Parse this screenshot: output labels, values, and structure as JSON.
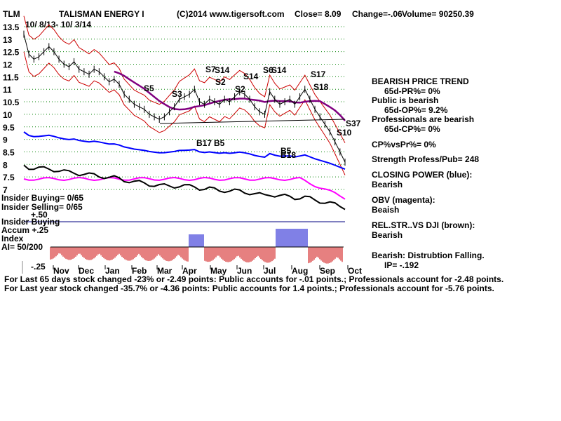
{
  "header": {
    "ticker": "TLM",
    "name": "TALISMAN ENERGY I",
    "copyright": "(C)2014 www.tigersoft.com",
    "close": "Close=   8.09",
    "change": "Change=-.06",
    "volume": "Volume=  90250.39",
    "date_range": "10/ 8/13- 10/ 3/14"
  },
  "chart_data": {
    "type": "line",
    "y_ticks": [
      "13.5",
      "13",
      "12.5",
      "12",
      "11.5",
      "11",
      "10.5",
      "10",
      "9.5",
      "9",
      "8.5",
      "8",
      "7.5",
      "7"
    ],
    "ylim": [
      6.8,
      13.6
    ],
    "x_ticks": [
      "Nov",
      "Dec",
      "Jan",
      "Feb",
      "Mar",
      "Apr",
      "May",
      "Jun",
      "Jul",
      "Aug",
      "Sep",
      "Oct"
    ],
    "grid": true,
    "price": [
      13.2,
      12.4,
      12.2,
      12.3,
      12.5,
      12.7,
      12.5,
      12.2,
      12.0,
      11.9,
      12.1,
      11.8,
      11.7,
      11.6,
      11.8,
      11.7,
      11.5,
      11.3,
      11.4,
      11.2,
      10.8,
      10.6,
      10.4,
      10.3,
      10.2,
      10.0,
      9.9,
      9.8,
      9.9,
      10.1,
      10.3,
      10.6,
      10.7,
      10.8,
      11.0,
      10.5,
      10.4,
      10.6,
      10.5,
      10.4,
      10.6,
      10.5,
      10.7,
      10.9,
      10.8,
      10.6,
      10.3,
      10.1,
      10.0,
      10.9,
      10.6,
      10.4,
      10.5,
      10.6,
      10.4,
      10.7,
      11.0,
      10.6,
      10.2,
      9.9,
      9.6,
      9.3,
      8.9,
      8.5,
      8.09
    ],
    "annotations": [
      "S5",
      "S3",
      "S7",
      "S14",
      "S2",
      "S2",
      "S14",
      "S6",
      "S14",
      "S17",
      "S18",
      "S10",
      "S37",
      "B17",
      "B5",
      "B5",
      "B18"
    ],
    "indicators": {
      "insider_buying": "Insider Buying= 0/65",
      "insider_selling": "Insider Selling= 0/65",
      "insider_buying_label": "Insider Buying",
      "accum_index": "Accum  +.25",
      "accum_plus_50": "+.50",
      "index_label": "Index",
      "ai": "AI= 50/200",
      "minus_25": "-.25"
    }
  },
  "panel": {
    "trend": "BEARISH PRICE TREND",
    "pr": "65d-PR%= 0%",
    "public": "Public is bearish",
    "op": "65d-OP%= 9.2%",
    "prof": "Professionals are bearish",
    "cp": "65d-CP%= 0%",
    "cpvspr": "CP%vsPr%=  0%",
    "strength": "Strength Profess/Pub= 248",
    "closing_power": "CLOSING POWER (blue):",
    "cp_state": "Bearish",
    "obv": "OBV (magenta):",
    "obv_state": "Beaish",
    "relstr": "REL.STR..VS DJI (brown):",
    "relstr_state": "Bearish",
    "accum_state": "Bearish: Distrubtion Falling.",
    "ip": "IP= -.192"
  },
  "footer": {
    "line1": "For Last 65 days stock changed -23% or -2.49 points:  Public accounts for -.01 points.;  Professionals account for -2.48 points.",
    "line2": "For Last year stock changed -35.7% or -4.36 points:  Public accounts for  1.4 points.;  Professionals account for -5.76 points."
  },
  "colors": {
    "price": "#000000",
    "red_band": "#cc0000",
    "purple_ma": "#800080",
    "blue_cp": "#0000ff",
    "magenta_obv": "#ff00ff",
    "accum_red": "#cc0000",
    "accum_blue": "#0000cc",
    "grid": "#008000"
  }
}
